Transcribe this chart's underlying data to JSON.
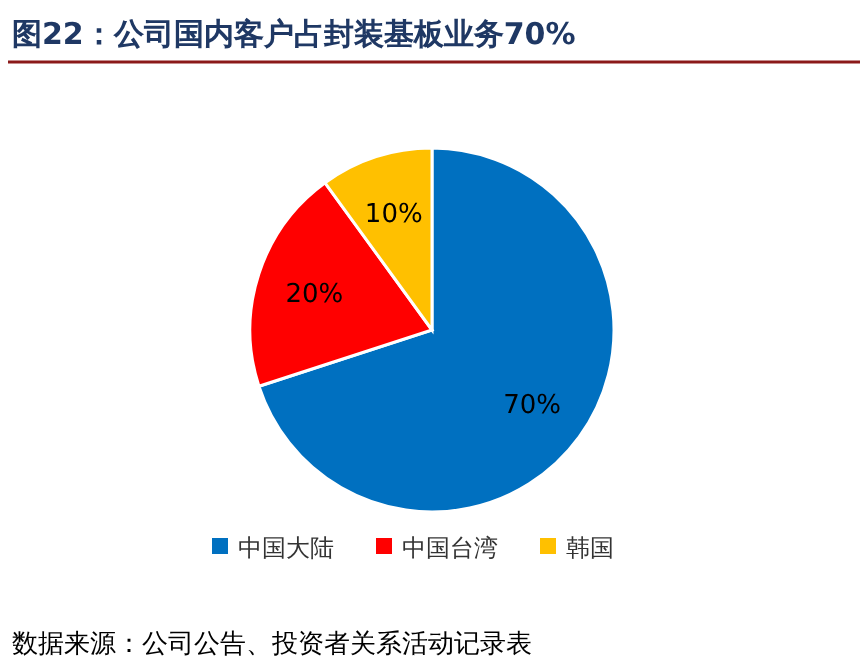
{
  "chart_data": {
    "type": "pie",
    "title": "图22：公司国内客户占封装基板业务70%",
    "categories": [
      "中国大陆",
      "中国台湾",
      "韩国"
    ],
    "values": [
      70,
      20,
      10
    ],
    "colors": [
      "#0070c0",
      "#ff0000",
      "#ffc000"
    ],
    "value_labels": [
      "70%",
      "20%",
      "10%"
    ],
    "legend": "bottom",
    "annotations": [
      "数据来源：公司公告、投资者关系活动记录表"
    ]
  }
}
